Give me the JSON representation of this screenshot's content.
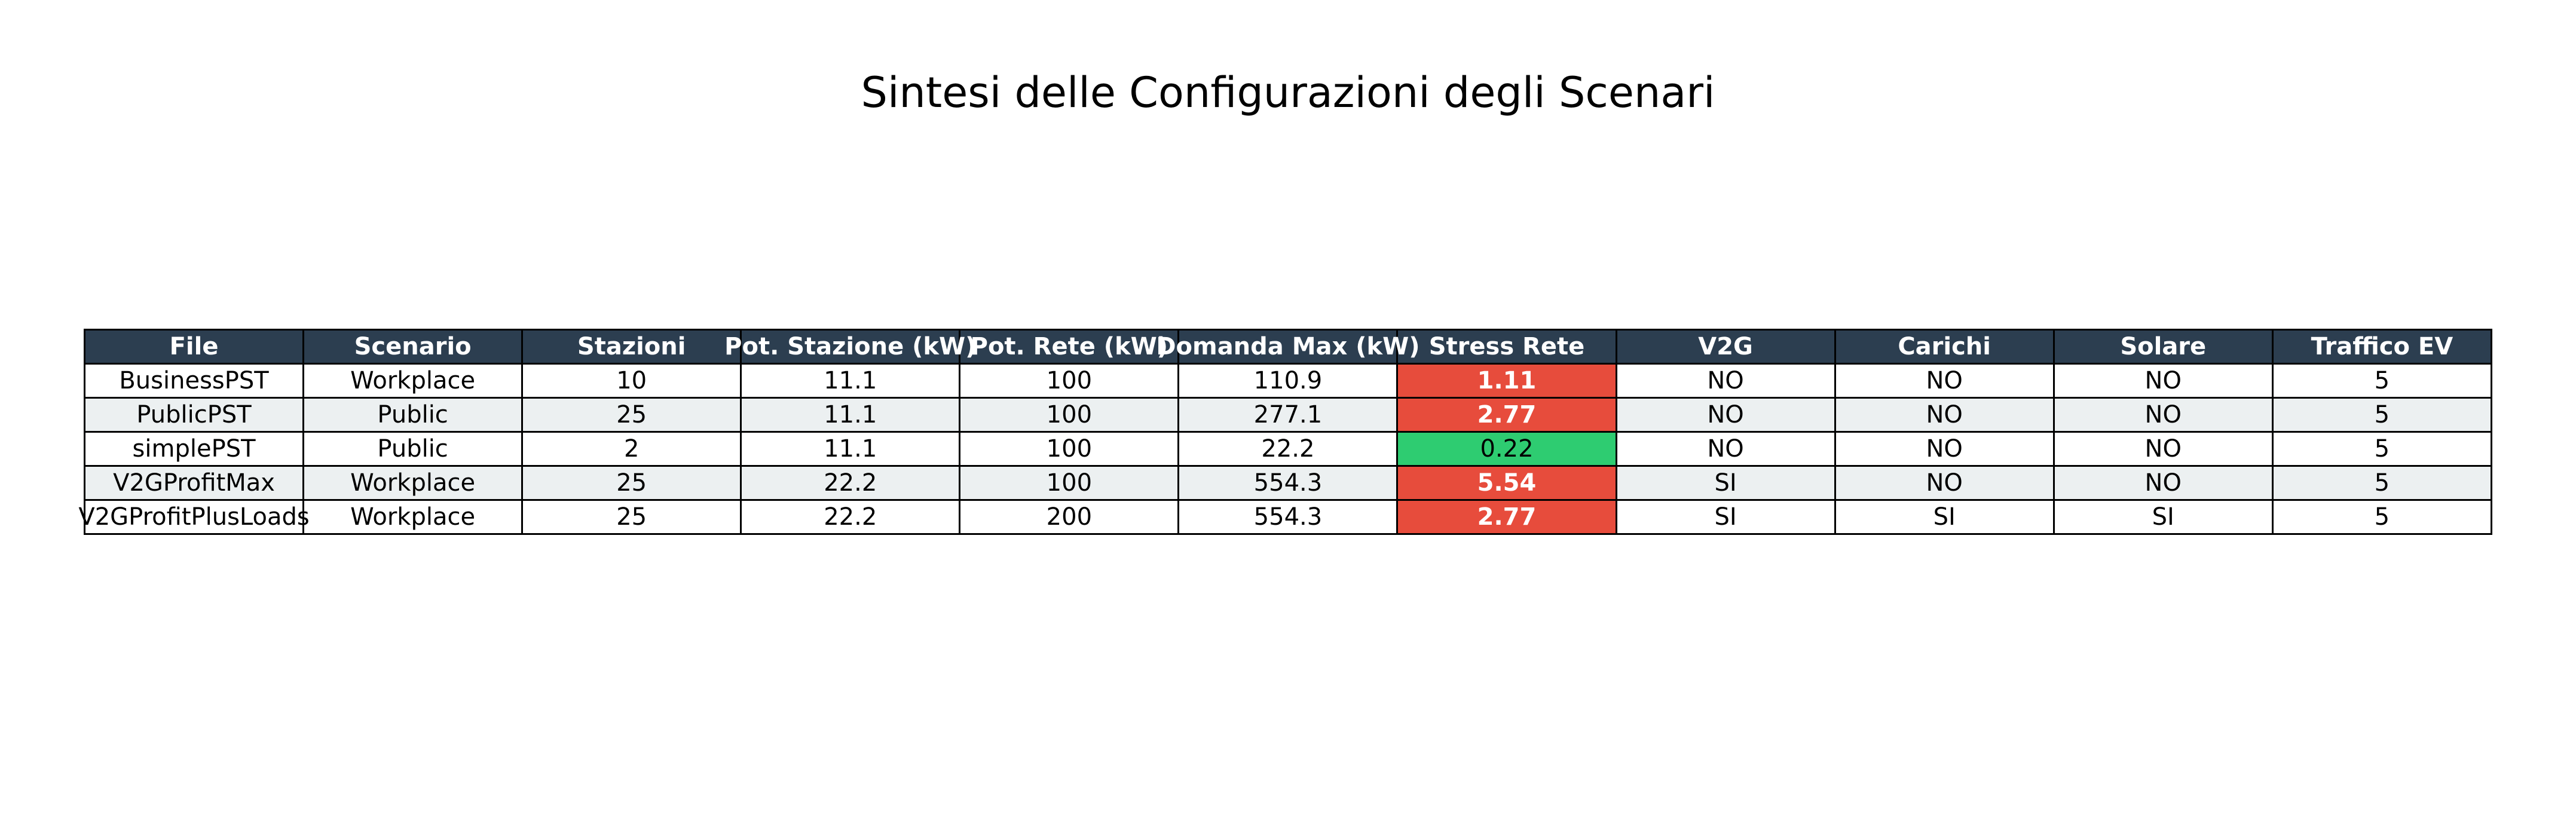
{
  "chart_data": {
    "type": "table",
    "title": "Sintesi delle Configurazioni degli Scenari",
    "columns": [
      "File",
      "Scenario",
      "Stazioni",
      "Pot. Stazione (kW)",
      "Pot. Rete (kW)",
      "Domanda Max (kW)",
      "Stress Rete",
      "V2G",
      "Carichi",
      "Solare",
      "Traffico EV"
    ],
    "rows": [
      [
        "BusinessPST",
        "Workplace",
        "10",
        "11.1",
        "100",
        "110.9",
        "1.11",
        "NO",
        "NO",
        "NO",
        "5"
      ],
      [
        "PublicPST",
        "Public",
        "25",
        "11.1",
        "100",
        "277.1",
        "2.77",
        "NO",
        "NO",
        "NO",
        "5"
      ],
      [
        "simplePST",
        "Public",
        "2",
        "11.1",
        "100",
        "22.2",
        "0.22",
        "NO",
        "NO",
        "NO",
        "5"
      ],
      [
        "V2GProfitMax",
        "Workplace",
        "25",
        "22.2",
        "100",
        "554.3",
        "5.54",
        "SI",
        "NO",
        "NO",
        "5"
      ],
      [
        "V2GProfitPlusLoads",
        "Workplace",
        "25",
        "22.2",
        "200",
        "554.3",
        "2.77",
        "SI",
        "SI",
        "SI",
        "5"
      ]
    ],
    "header_color": "#2c3e50",
    "row_colors": [
      "#ffffff",
      "#ecf0f1"
    ],
    "stress_colors": {
      "high": "#e74c3c",
      "low": "#2ecc71"
    },
    "stress_threshold": 1.0
  }
}
